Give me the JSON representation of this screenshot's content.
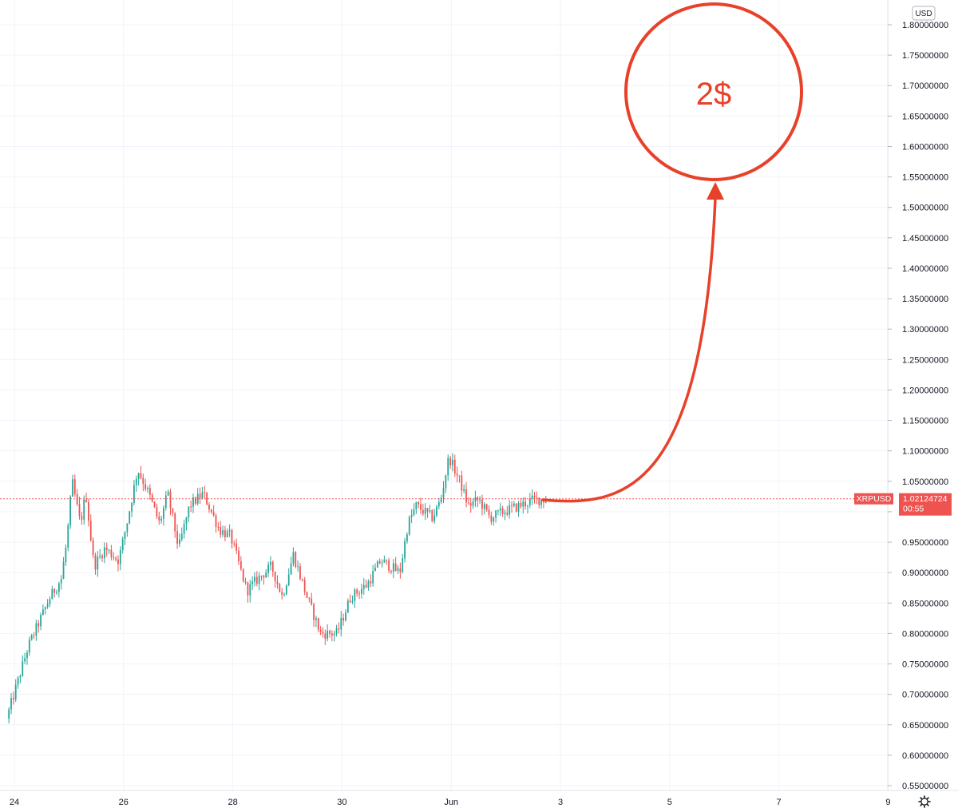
{
  "currency": "USD",
  "settings_icon": "gear-icon",
  "colors": {
    "up": "#26a69a",
    "down": "#ef5350",
    "price_line": "#ef5350",
    "annotation": "#e8412a",
    "grid": "#f0f3fa",
    "text": "#131722"
  },
  "last_price": {
    "symbol": "XRPUSD",
    "price": "1.02124724",
    "countdown": "00:55"
  },
  "annotation": {
    "text": "2$",
    "target_value": 2.0
  },
  "chart_data": {
    "type": "candlestick",
    "title": "",
    "symbol": "XRPUSD",
    "currency": "USD",
    "ylim": [
      0.53,
      1.82
    ],
    "y_ticks": [
      "1.80000000",
      "1.75000000",
      "1.70000000",
      "1.65000000",
      "1.60000000",
      "1.55000000",
      "1.50000000",
      "1.45000000",
      "1.40000000",
      "1.35000000",
      "1.30000000",
      "1.25000000",
      "1.20000000",
      "1.15000000",
      "1.10000000",
      "1.05000000",
      "1.00000000",
      "0.95000000",
      "0.90000000",
      "0.85000000",
      "0.80000000",
      "0.75000000",
      "0.70000000",
      "0.65000000",
      "0.60000000",
      "0.55000000"
    ],
    "x_ticks": [
      {
        "label": "24",
        "day": 24
      },
      {
        "label": "26",
        "day": 26
      },
      {
        "label": "28",
        "day": 28
      },
      {
        "label": "30",
        "day": 30
      },
      {
        "label": "Jun",
        "day": 32
      },
      {
        "label": "3",
        "day": 34
      },
      {
        "label": "5",
        "day": 36
      },
      {
        "label": "7",
        "day": 38
      },
      {
        "label": "9",
        "day": 40
      }
    ],
    "x_range_days": [
      23.9,
      40.5
    ],
    "price_path": [
      {
        "day": 23.9,
        "price": 0.66
      },
      {
        "day": 24.1,
        "price": 0.72
      },
      {
        "day": 24.3,
        "price": 0.78
      },
      {
        "day": 24.5,
        "price": 0.82
      },
      {
        "day": 24.7,
        "price": 0.86
      },
      {
        "day": 24.9,
        "price": 0.89
      },
      {
        "day": 25.0,
        "price": 0.95
      },
      {
        "day": 25.1,
        "price": 1.05
      },
      {
        "day": 25.25,
        "price": 0.98
      },
      {
        "day": 25.35,
        "price": 1.03
      },
      {
        "day": 25.5,
        "price": 0.91
      },
      {
        "day": 25.7,
        "price": 0.94
      },
      {
        "day": 25.95,
        "price": 0.92
      },
      {
        "day": 26.1,
        "price": 0.98
      },
      {
        "day": 26.3,
        "price": 1.07
      },
      {
        "day": 26.5,
        "price": 1.03
      },
      {
        "day": 26.7,
        "price": 0.98
      },
      {
        "day": 26.85,
        "price": 1.03
      },
      {
        "day": 27.05,
        "price": 0.94
      },
      {
        "day": 27.25,
        "price": 1.01
      },
      {
        "day": 27.5,
        "price": 1.03
      },
      {
        "day": 27.8,
        "price": 0.97
      },
      {
        "day": 28.0,
        "price": 0.96
      },
      {
        "day": 28.3,
        "price": 0.87
      },
      {
        "day": 28.5,
        "price": 0.89
      },
      {
        "day": 28.75,
        "price": 0.91
      },
      {
        "day": 28.95,
        "price": 0.86
      },
      {
        "day": 29.15,
        "price": 0.93
      },
      {
        "day": 29.4,
        "price": 0.86
      },
      {
        "day": 29.65,
        "price": 0.8
      },
      {
        "day": 29.95,
        "price": 0.8
      },
      {
        "day": 30.2,
        "price": 0.86
      },
      {
        "day": 30.5,
        "price": 0.88
      },
      {
        "day": 30.75,
        "price": 0.92
      },
      {
        "day": 31.1,
        "price": 0.9
      },
      {
        "day": 31.25,
        "price": 0.98
      },
      {
        "day": 31.4,
        "price": 1.01
      },
      {
        "day": 31.7,
        "price": 0.99
      },
      {
        "day": 31.85,
        "price": 1.02
      },
      {
        "day": 32.0,
        "price": 1.09
      },
      {
        "day": 32.2,
        "price": 1.05
      },
      {
        "day": 32.35,
        "price": 1.01
      },
      {
        "day": 32.55,
        "price": 1.02
      },
      {
        "day": 32.75,
        "price": 0.99
      },
      {
        "day": 33.0,
        "price": 1.0
      },
      {
        "day": 33.3,
        "price": 1.01
      },
      {
        "day": 33.55,
        "price": 1.02
      },
      {
        "day": 33.75,
        "price": 1.02
      }
    ]
  }
}
